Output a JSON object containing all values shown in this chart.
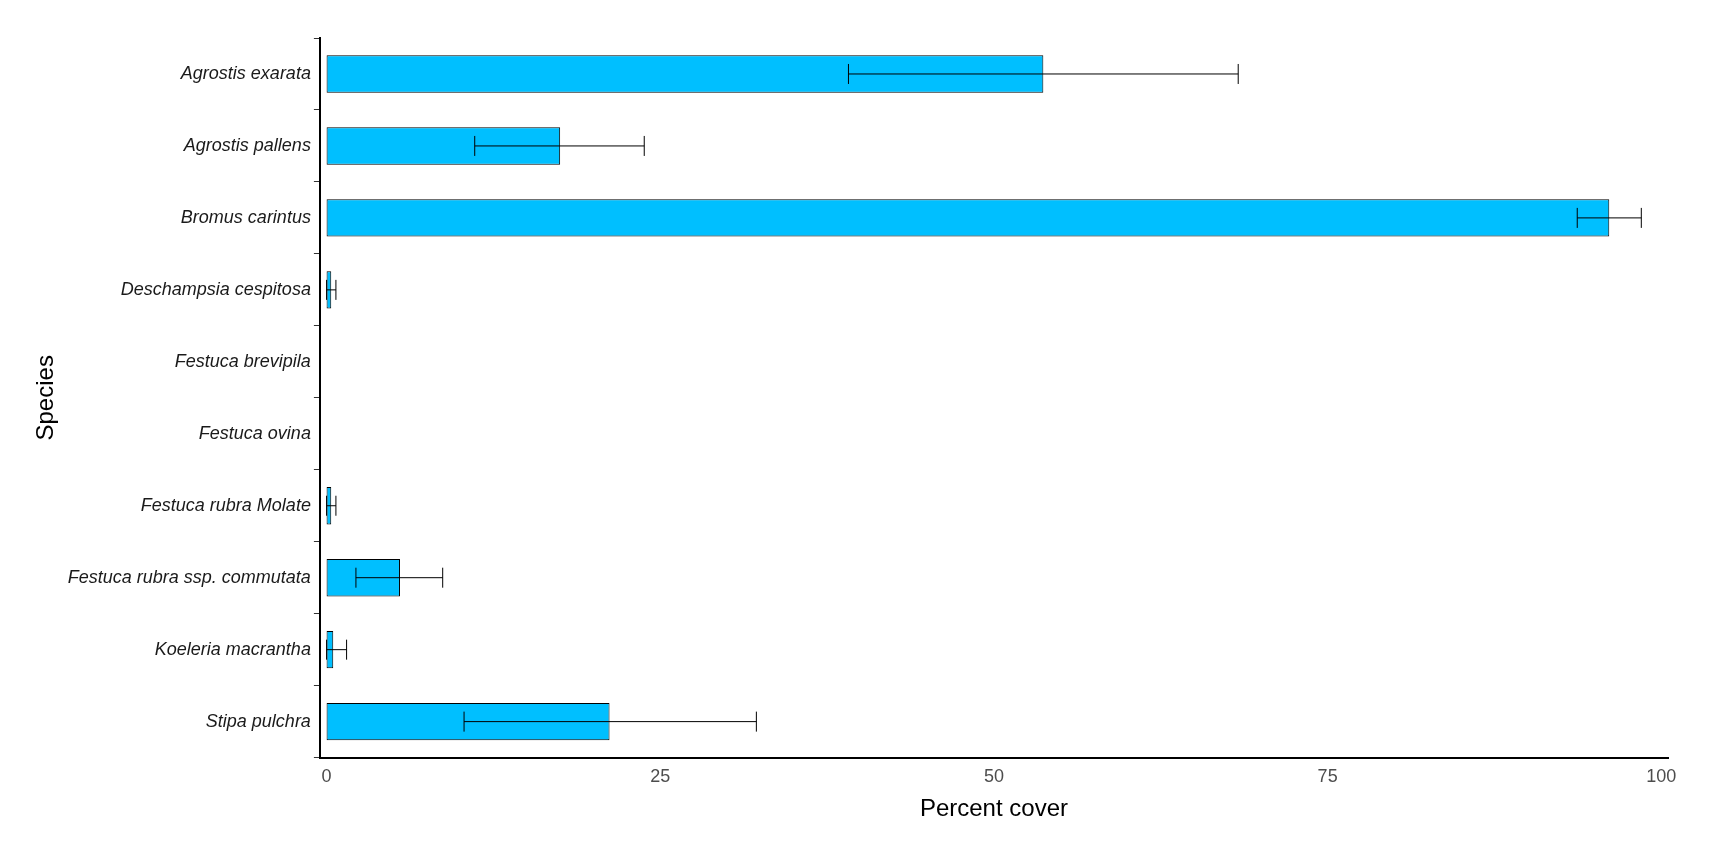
{
  "chart_data": {
    "type": "bar",
    "orientation": "horizontal",
    "xlabel": "Percent cover",
    "ylabel": "Species",
    "categories": [
      "Agrostis exarata",
      "Agrostis pallens",
      "Bromus carintus",
      "Deschampsia cespitosa",
      "Festuca brevipila",
      "Festuca ovina",
      "Festuca rubra Molate",
      "Festuca rubra ssp. commutata",
      "Koeleria macrantha",
      "Stipa pulchra"
    ],
    "values": [
      53.7,
      17.5,
      96.1,
      0.35,
      0,
      0,
      0.35,
      5.5,
      0.5,
      21.2
    ],
    "errors": [
      [
        39.1,
        68.3
      ],
      [
        11.1,
        23.8
      ],
      [
        93.7,
        98.5
      ],
      [
        0,
        0.7
      ],
      null,
      null,
      [
        0,
        0.7
      ],
      [
        2.2,
        8.7
      ],
      [
        0,
        1.5
      ],
      [
        10.3,
        32.2
      ]
    ],
    "color": "#00bfff",
    "xlim": [
      -0.5,
      100.5
    ],
    "xticks": [
      0,
      25,
      50,
      75,
      100
    ],
    "grid": false,
    "legend": false
  }
}
